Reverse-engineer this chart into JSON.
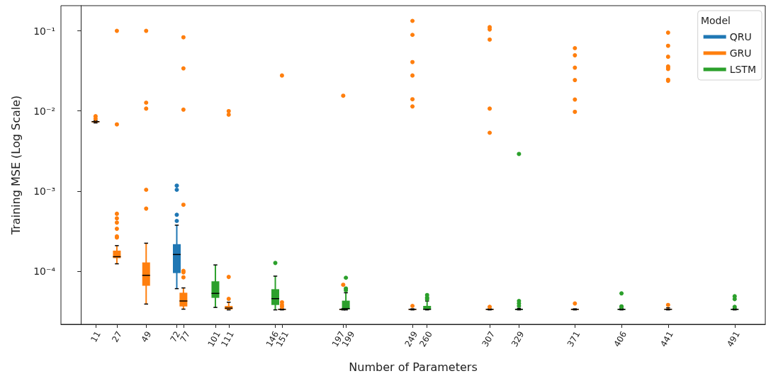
{
  "chart_data": {
    "type": "box",
    "xlabel": "Number of Parameters",
    "ylabel": "Training MSE (Log Scale)",
    "legend_title": "Model",
    "legend": "top right",
    "log": "y",
    "grid": false,
    "marker": "circle",
    "xlim": [
      -15,
      514
    ],
    "xticks": [
      11,
      27,
      49,
      72,
      77,
      101,
      111,
      146,
      151,
      197,
      199,
      249,
      260,
      307,
      329,
      371,
      406,
      441,
      491
    ],
    "ylim": [
      2.18e-05,
      0.206
    ],
    "yticks": [
      {
        "value": 0.0001,
        "label": "10⁻⁴"
      },
      {
        "value": 0.001,
        "label": "10⁻³"
      },
      {
        "value": 0.01,
        "label": "10⁻²"
      },
      {
        "value": 0.1,
        "label": "10⁻¹"
      }
    ],
    "series": [
      {
        "name": "QRU",
        "color": "#1f77b4",
        "x": [
          72
        ],
        "boxes": [
          {
            "low": 6.07e-05,
            "q1": 9.5e-05,
            "median": 0.000162,
            "q3": 0.000218,
            "high": 0.000376,
            "outliers": [
              0.000425,
              0.000507,
              0.00104,
              0.00117
            ]
          }
        ]
      },
      {
        "name": "GRU",
        "color": "#ff7f0e",
        "x": [
          11,
          27,
          49,
          77,
          111,
          151,
          197,
          249,
          307,
          371,
          441
        ],
        "boxes": [
          {
            "low": 0.0071,
            "q1": 0.0072,
            "median": 0.00736,
            "q3": 0.00745,
            "high": 0.0076,
            "outliers": [
              0.008,
              0.0086
            ]
          },
          {
            "low": 0.000124,
            "q1": 0.000146,
            "median": 0.000152,
            "q3": 0.000181,
            "high": 0.000209,
            "outliers": [
              0.000264,
              0.000273,
              0.000339,
              0.000405,
              0.000458,
              0.000522,
              0.0068,
              0.1
            ]
          },
          {
            "low": 3.9e-05,
            "q1": 6.6e-05,
            "median": 8.9e-05,
            "q3": 0.000129,
            "high": 0.000224,
            "outliers": [
              0.000605,
              0.00104,
              0.0107,
              0.0127,
              0.1
            ]
          },
          {
            "low": 3.37e-05,
            "q1": 3.64e-05,
            "median": 4.26e-05,
            "q3": 5.4e-05,
            "high": 6.2e-05,
            "outliers": [
              8.4e-05,
              9.7e-05,
              0.000101,
              0.000676,
              0.0104,
              0.034,
              0.083
            ]
          },
          {
            "low": 3.3e-05,
            "q1": 3.35e-05,
            "median": 3.47e-05,
            "q3": 3.69e-05,
            "high": 4.11e-05,
            "outliers": [
              4.53e-05,
              8.5e-05,
              0.009,
              0.00995
            ]
          },
          {
            "low": 3.3e-05,
            "q1": 3.33e-05,
            "median": 3.35e-05,
            "q3": 3.37e-05,
            "high": 3.4e-05,
            "outliers": [
              3.6e-05,
              3.8e-05,
              4.1e-05,
              0.0277
            ]
          },
          {
            "low": 3.3e-05,
            "q1": 3.33e-05,
            "median": 3.35e-05,
            "q3": 3.37e-05,
            "high": 3.4e-05,
            "outliers": [
              6.78e-05,
              0.0155
            ]
          },
          {
            "low": 3.3e-05,
            "q1": 3.33e-05,
            "median": 3.35e-05,
            "q3": 3.37e-05,
            "high": 3.4e-05,
            "outliers": [
              3.7e-05,
              0.0114,
              0.014,
              0.0277,
              0.0407,
              0.089,
              0.133
            ]
          },
          {
            "low": 3.3e-05,
            "q1": 3.33e-05,
            "median": 3.35e-05,
            "q3": 3.37e-05,
            "high": 3.4e-05,
            "outliers": [
              3.6e-05,
              0.00535,
              0.0107,
              0.0777,
              0.104,
              0.111
            ]
          },
          {
            "low": 3.3e-05,
            "q1": 3.33e-05,
            "median": 3.35e-05,
            "q3": 3.37e-05,
            "high": 3.4e-05,
            "outliers": [
              3.97e-05,
              0.00975,
              0.0139,
              0.0243,
              0.0347,
              0.0495,
              0.0608
            ]
          },
          {
            "low": 3.3e-05,
            "q1": 3.33e-05,
            "median": 3.35e-05,
            "q3": 3.4e-05,
            "high": 3.5e-05,
            "outliers": [
              3.8e-05,
              0.0238,
              0.0245,
              0.0334,
              0.035,
              0.036,
              0.0475,
              0.065,
              0.095
            ]
          }
        ]
      },
      {
        "name": "LSTM",
        "color": "#2ca02c",
        "x": [
          101,
          146,
          199,
          260,
          329,
          406,
          491
        ],
        "boxes": [
          {
            "low": 3.54e-05,
            "q1": 4.66e-05,
            "median": 5.3e-05,
            "q3": 7.5e-05,
            "high": 0.00012
          },
          {
            "low": 3.3e-05,
            "q1": 3.8e-05,
            "median": 4.56e-05,
            "q3": 5.98e-05,
            "high": 8.7e-05,
            "outliers": [
              0.000127
            ]
          },
          {
            "low": 3.3e-05,
            "q1": 3.35e-05,
            "median": 3.42e-05,
            "q3": 4.3e-05,
            "high": 5.4e-05,
            "outliers": [
              5.8e-05,
              6.1e-05,
              8.3e-05
            ]
          },
          {
            "low": 3.3e-05,
            "q1": 3.33e-05,
            "median": 3.35e-05,
            "q3": 3.7e-05,
            "high": 4.26e-05,
            "outliers": [
              4.5e-05,
              4.7e-05,
              5.05e-05
            ]
          },
          {
            "low": 3.3e-05,
            "q1": 3.33e-05,
            "median": 3.35e-05,
            "q3": 3.37e-05,
            "high": 3.45e-05,
            "outliers": [
              3.7e-05,
              3.97e-05,
              4.26e-05,
              0.00291
            ]
          },
          {
            "low": 3.3e-05,
            "q1": 3.33e-05,
            "median": 3.35e-05,
            "q3": 3.37e-05,
            "high": 3.45e-05,
            "outliers": [
              3.6e-05,
              3.65e-05,
              5.3e-05
            ]
          },
          {
            "low": 3.3e-05,
            "q1": 3.33e-05,
            "median": 3.35e-05,
            "q3": 3.37e-05,
            "high": 3.45e-05,
            "outliers": [
              3.6e-05,
              4.5e-05,
              4.88e-05
            ]
          }
        ]
      }
    ]
  }
}
